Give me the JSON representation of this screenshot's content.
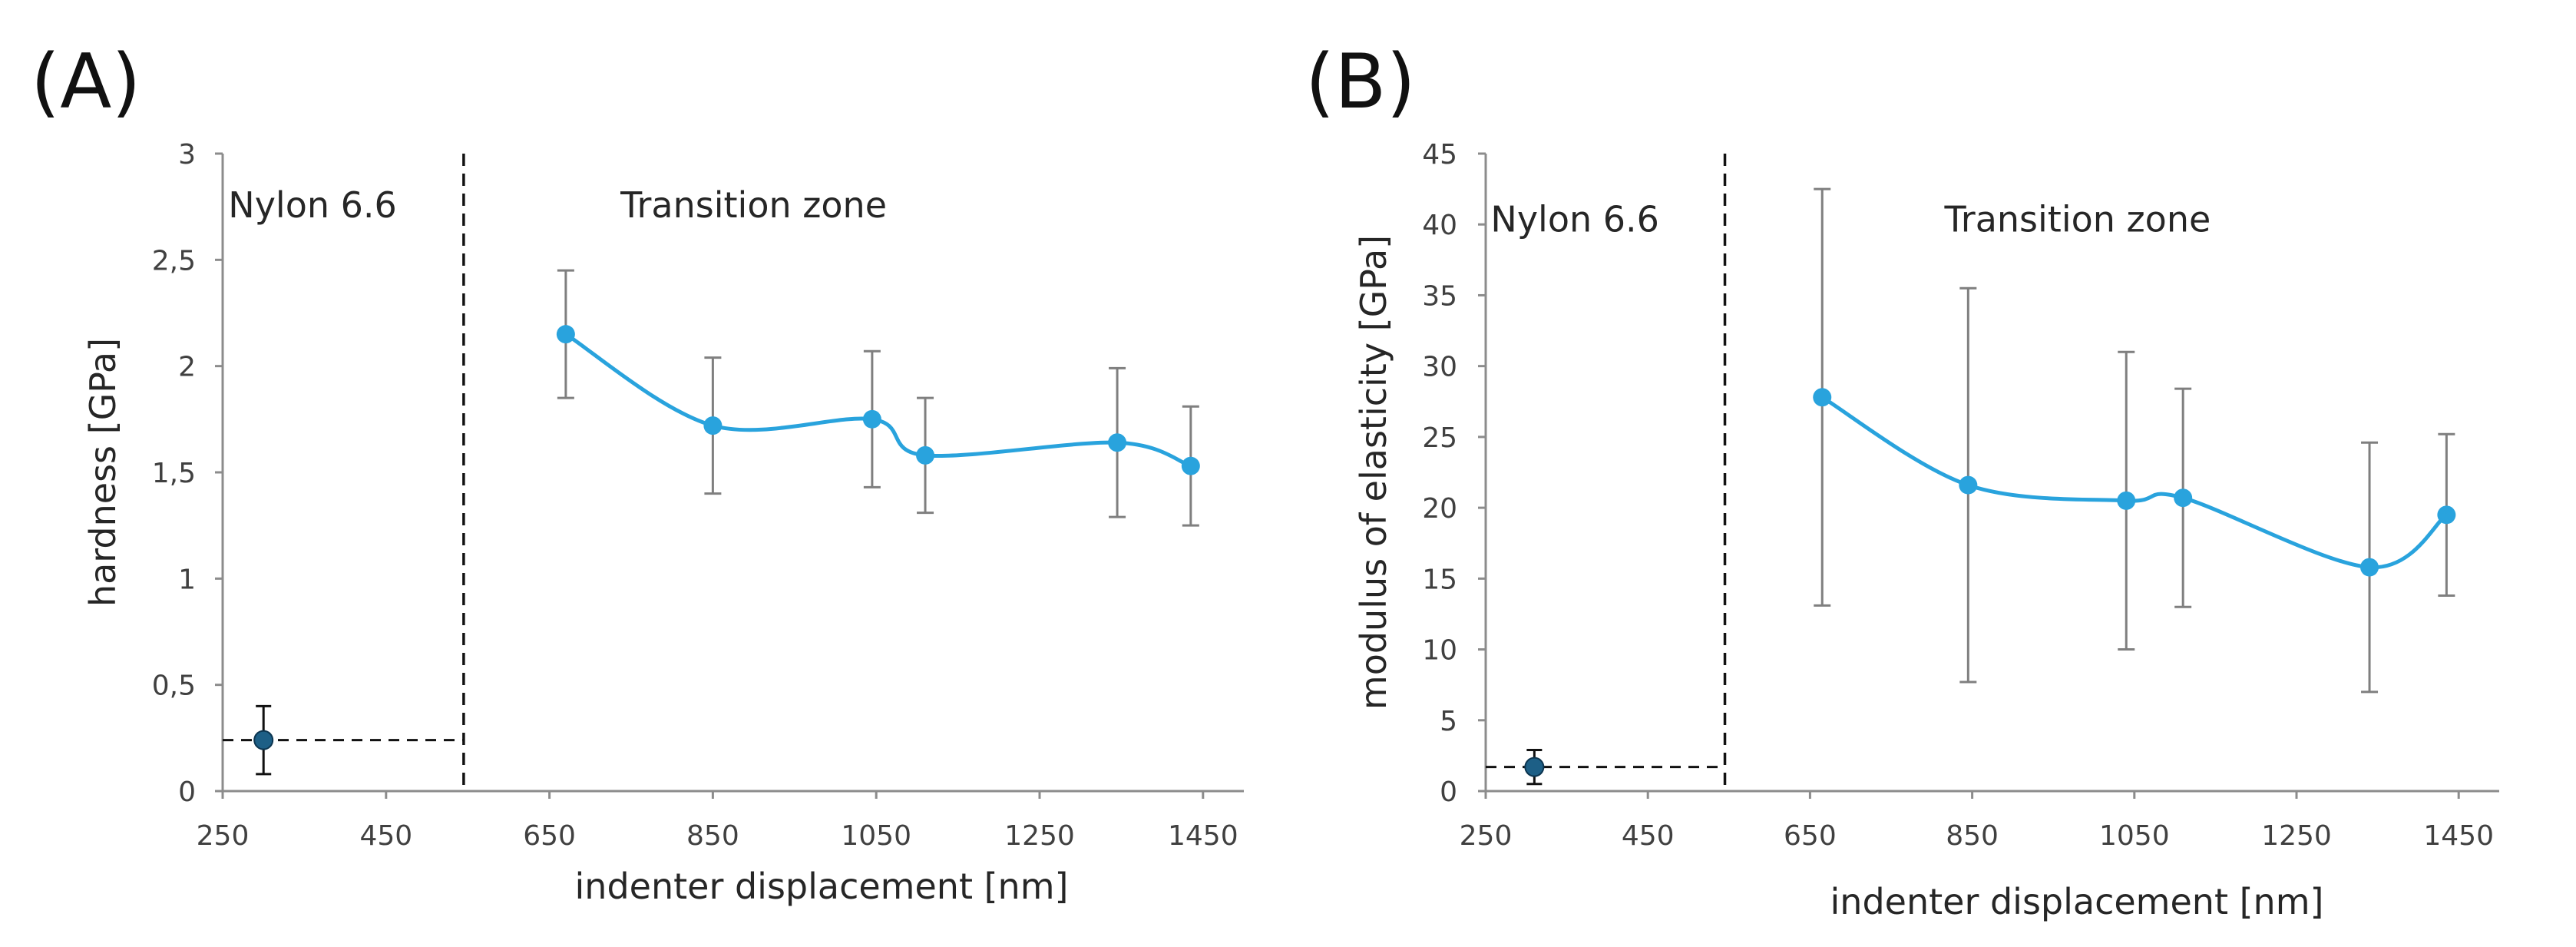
{
  "colors": {
    "series": "#29a3dd",
    "nylon_point": "#1d5f86",
    "error_bar": "#7f7f7f",
    "axis": "#8c8c8c",
    "text": "#262626"
  },
  "chart_data": [
    {
      "type": "line",
      "panel_label": "(A)",
      "title": "",
      "xlabel": "indenter displacement   [nm]",
      "ylabel": "hardness   [GPa]",
      "xlim": [
        250,
        1500
      ],
      "ylim": [
        0,
        3
      ],
      "xticks": [
        250,
        450,
        650,
        850,
        1050,
        1250,
        1450
      ],
      "xtick_labels": [
        "250",
        "450",
        "650",
        "850",
        "1050",
        "1250",
        "1450"
      ],
      "yticks": [
        0,
        0.5,
        1,
        1.5,
        2,
        2.5,
        3
      ],
      "ytick_labels": [
        "0",
        "0,5",
        "1",
        "1,5",
        "2",
        "2,5",
        "3"
      ],
      "zones": [
        {
          "label": "Nylon 6.6",
          "x": 360,
          "y": 2.7
        },
        {
          "label": "Transition zone",
          "x": 900,
          "y": 2.7
        }
      ],
      "divider_x": 545,
      "reference": {
        "x": 300,
        "y": 0.24,
        "err": 0.16
      },
      "series": [
        {
          "name": "Transition zone",
          "x": [
            670,
            850,
            1045,
            1110,
            1345,
            1435
          ],
          "y": [
            2.15,
            1.72,
            1.75,
            1.58,
            1.64,
            1.53
          ],
          "err": [
            0.3,
            0.32,
            0.32,
            0.27,
            0.35,
            0.28
          ]
        }
      ]
    },
    {
      "type": "line",
      "panel_label": "(B)",
      "title": "",
      "xlabel": "indenter displacement   [nm]",
      "ylabel": "modulus of elasticity   [GPa]",
      "xlim": [
        250,
        1500
      ],
      "ylim": [
        0,
        45
      ],
      "xticks": [
        250,
        450,
        650,
        850,
        1050,
        1250,
        1450
      ],
      "xtick_labels": [
        "250",
        "450",
        "650",
        "850",
        "1050",
        "1250",
        "1450"
      ],
      "yticks": [
        0,
        5,
        10,
        15,
        20,
        25,
        30,
        35,
        40,
        45
      ],
      "ytick_labels": [
        "0",
        "5",
        "10",
        "15",
        "20",
        "25",
        "30",
        "35",
        "40",
        "45"
      ],
      "zones": [
        {
          "label": "Nylon 6.6",
          "x": 360,
          "y": 39.5
        },
        {
          "label": "Transition zone",
          "x": 980,
          "y": 39.5
        }
      ],
      "divider_x": 545,
      "reference": {
        "x": 310,
        "y": 1.7,
        "err": 1.2
      },
      "series": [
        {
          "name": "Transition zone",
          "x": [
            665,
            845,
            1040,
            1110,
            1340,
            1435
          ],
          "y": [
            27.8,
            21.6,
            20.5,
            20.7,
            15.8,
            19.5
          ],
          "err": [
            14.7,
            13.9,
            10.5,
            7.7,
            8.8,
            5.7
          ]
        }
      ]
    }
  ]
}
